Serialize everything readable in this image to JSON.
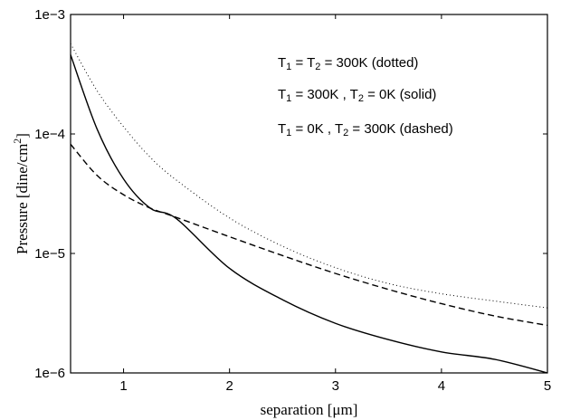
{
  "chart_data": {
    "type": "line",
    "title": "",
    "xlabel": "separation [μm]",
    "ylabel": "Pressure  [dine/cm²]",
    "x_scale": "linear",
    "y_scale": "log",
    "xlim": [
      0.5,
      5
    ],
    "ylim": [
      1e-06,
      0.001
    ],
    "x_ticks": [
      1,
      2,
      3,
      4,
      5
    ],
    "x_tick_labels": [
      "1",
      "2",
      "3",
      "4",
      "5"
    ],
    "y_ticks": [
      1e-06,
      1e-05,
      0.0001,
      0.001
    ],
    "y_tick_labels": [
      "1e−6",
      "1e−5",
      "1e−4",
      "1e−3"
    ],
    "grid": false,
    "legend_placement": "top-right",
    "annotations": [
      {
        "t1": "T",
        "s1": "1",
        "m1": " = T",
        "s2": "2",
        "rest": " = 300K  (dotted)"
      },
      {
        "t1": "T",
        "s1": "1",
        "m1": " = 300K , T",
        "s2": "2",
        "rest": " = 0K  (solid)"
      },
      {
        "t1": "T",
        "s1": "1",
        "m1": " = 0K , T",
        "s2": "2",
        "rest": " = 300K  (dashed)"
      }
    ],
    "series": [
      {
        "style": "dotted",
        "x": [
          0.5,
          0.75,
          1.0,
          1.25,
          1.5,
          2.0,
          2.5,
          3.0,
          3.5,
          4.0,
          4.5,
          5.0
        ],
        "y": [
          0.00057,
          0.00023,
          0.000115,
          6.4e-05,
          4.1e-05,
          1.98e-05,
          1.15e-05,
          7.6e-06,
          5.6e-06,
          4.6e-06,
          4e-06,
          3.5e-06
        ]
      },
      {
        "style": "solid",
        "x": [
          0.5,
          0.75,
          1.0,
          1.25,
          1.5,
          2.0,
          2.5,
          3.0,
          3.5,
          4.0,
          4.5,
          5.0
        ],
        "y": [
          0.00046,
          0.00011,
          4.2e-05,
          2.4e-05,
          1.95e-05,
          7.5e-06,
          4.1e-06,
          2.6e-06,
          1.9e-06,
          1.5e-06,
          1.3e-06,
          1e-06
        ]
      },
      {
        "style": "dashed",
        "x": [
          0.5,
          0.75,
          1.0,
          1.25,
          1.5,
          2.0,
          2.5,
          3.0,
          3.5,
          4.0,
          4.5,
          5.0
        ],
        "y": [
          8.2e-05,
          4.5e-05,
          3.1e-05,
          2.4e-05,
          2e-05,
          1.38e-05,
          9.6e-06,
          6.8e-06,
          5e-06,
          3.8e-06,
          3e-06,
          2.5e-06
        ]
      }
    ]
  }
}
